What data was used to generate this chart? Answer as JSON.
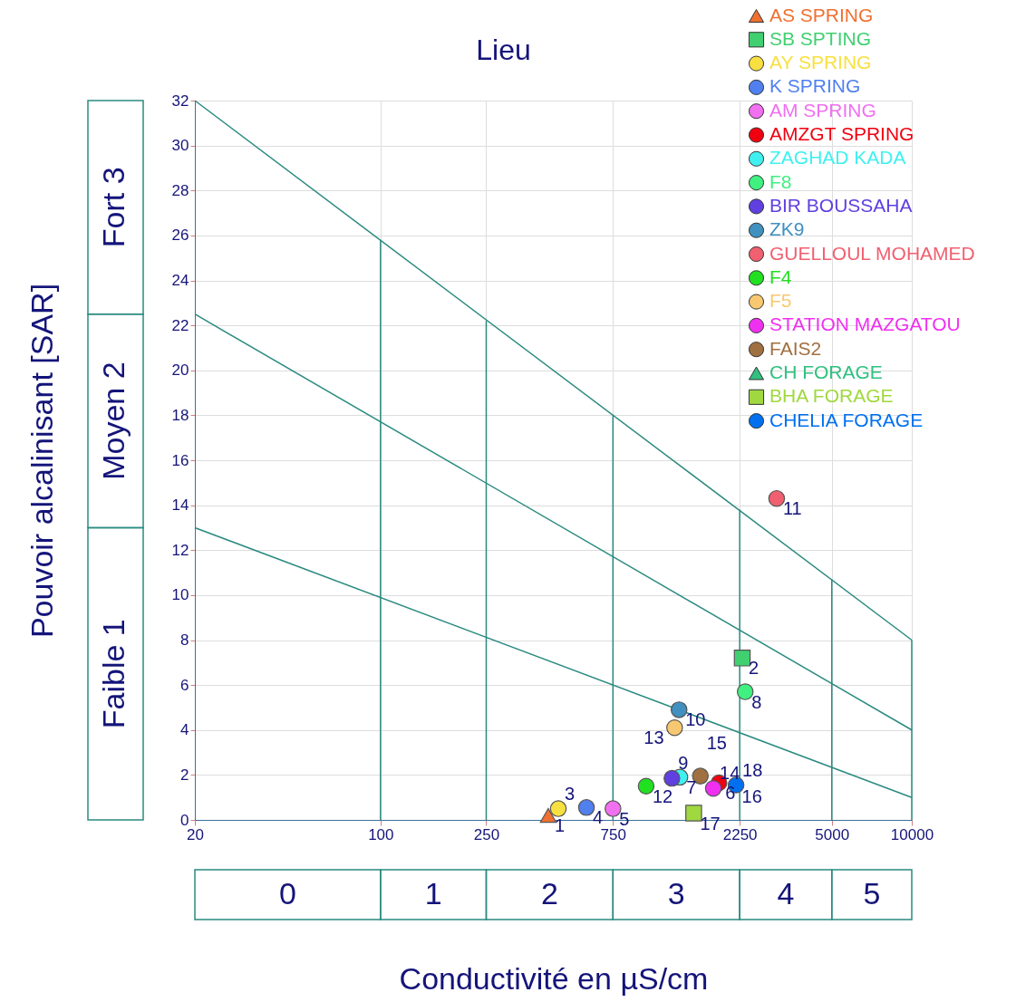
{
  "chart_data": {
    "type": "scatter",
    "title": "Lieu",
    "xlabel": "Conductivité en µS/cm",
    "ylabel": "Pouvoir alcalinisant [SAR]",
    "log": "x",
    "xlim": [
      20,
      10000
    ],
    "xticks": [
      20,
      100,
      250,
      750,
      2250,
      5000,
      10000
    ],
    "ylim": [
      0,
      32
    ],
    "yticks": [
      0,
      2,
      4,
      6,
      8,
      10,
      12,
      14,
      16,
      18,
      20,
      22,
      24,
      26,
      28,
      30,
      32
    ],
    "grid": true,
    "legend": "top right",
    "series": [
      {
        "type": "line",
        "color": "#2a8a80",
        "x": [
          20,
          10000
        ],
        "values": [
          32,
          8
        ]
      },
      {
        "type": "line",
        "color": "#2a8a80",
        "x": [
          20,
          10000
        ],
        "values": [
          22.5,
          4
        ]
      },
      {
        "type": "line",
        "color": "#2a8a80",
        "x": [
          20,
          10000
        ],
        "values": [
          13,
          1
        ]
      },
      {
        "type": "line",
        "color": "#2a8a80",
        "x": [
          100,
          100
        ],
        "values": [
          0,
          25.8
        ]
      },
      {
        "type": "line",
        "color": "#2a8a80",
        "x": [
          250,
          250
        ],
        "values": [
          0,
          22.2
        ]
      },
      {
        "type": "line",
        "color": "#2a8a80",
        "x": [
          750,
          750
        ],
        "values": [
          0,
          18
        ]
      },
      {
        "type": "line",
        "color": "#2a8a80",
        "x": [
          2250,
          2250
        ],
        "values": [
          0,
          13.8
        ]
      },
      {
        "type": "line",
        "color": "#2a8a80",
        "x": [
          5000,
          5000
        ],
        "values": [
          0,
          10.7
        ]
      },
      {
        "type": "line",
        "color": "#2a8a80",
        "x": [
          10000,
          10000
        ],
        "values": [
          0,
          8
        ]
      },
      {
        "name": "AS SPRING",
        "color": "#f07030",
        "marker": "triangle",
        "x": [
          428
        ],
        "values": [
          0.2
        ]
      },
      {
        "name": "SB SPTING",
        "color": "#40d070",
        "marker": "square",
        "x": [
          2300
        ],
        "values": [
          7.2
        ]
      },
      {
        "name": "AY SPRING",
        "color": "#f8e040",
        "marker": "circle",
        "x": [
          467
        ],
        "values": [
          0.5
        ]
      },
      {
        "name": "K SPRING",
        "color": "#5080f0",
        "marker": "circle",
        "x": [
          596
        ],
        "values": [
          0.55
        ]
      },
      {
        "name": "AM SPRING",
        "color": "#f070f0",
        "marker": "circle",
        "x": [
          750
        ],
        "values": [
          0.5
        ]
      },
      {
        "name": "AMZGT SPRING",
        "color": "#f00010",
        "marker": "circle",
        "x": [
          1880
        ],
        "values": [
          1.65
        ]
      },
      {
        "name": "ZAGHAD KADA",
        "color": "#40f0f0",
        "marker": "circle",
        "x": [
          1340
        ],
        "values": [
          1.9
        ]
      },
      {
        "name": "F8",
        "color": "#40f080",
        "marker": "circle",
        "x": [
          2360
        ],
        "values": [
          5.7
        ]
      },
      {
        "name": "BIR BOUSSAHA",
        "color": "#6040e0",
        "marker": "circle",
        "x": [
          1250
        ],
        "values": [
          1.85
        ]
      },
      {
        "name": "ZK9",
        "color": "#4090c0",
        "marker": "circle",
        "x": [
          1330
        ],
        "values": [
          4.9
        ]
      },
      {
        "name": "GUELLOUL MOHAMED",
        "color": "#f06070",
        "marker": "circle",
        "x": [
          3100
        ],
        "values": [
          14.3
        ]
      },
      {
        "name": "F4",
        "color": "#20e020",
        "marker": "circle",
        "x": [
          1000
        ],
        "values": [
          1.5
        ]
      },
      {
        "name": "F5",
        "color": "#f8c870",
        "marker": "circle",
        "x": [
          1280
        ],
        "values": [
          4.1
        ]
      },
      {
        "name": "STATION MAZGATOU",
        "color": "#f030f0",
        "marker": "circle",
        "x": [
          1790
        ],
        "values": [
          1.4
        ]
      },
      {
        "name": "FAIS2",
        "color": "#a07040",
        "marker": "circle",
        "x": [
          1600
        ],
        "values": [
          1.95
        ]
      },
      {
        "name": "CH FORAGE",
        "color": "#30c080",
        "marker": "triangle",
        "x": [
          null
        ],
        "values": [
          null
        ]
      },
      {
        "name": "BHA FORAGE",
        "color": "#a0d840",
        "marker": "square",
        "x": [
          1510
        ],
        "values": [
          0.3
        ]
      },
      {
        "name": "CHELIA FORAGE",
        "color": "#0070f0",
        "marker": "circle",
        "x": [
          2180
        ],
        "values": [
          1.55
        ]
      }
    ],
    "annotations": [
      "Faible  1",
      "Moyen  2",
      "Fort  3",
      "0",
      "1",
      "2",
      "3",
      "4",
      "5",
      {
        "text": "1",
        "x": 428,
        "y": 0.2
      },
      {
        "text": "2",
        "x": 2300,
        "y": 7.2
      },
      {
        "text": "3",
        "x": 467,
        "y": 0.5
      },
      {
        "text": "4",
        "x": 596,
        "y": 0.55
      },
      {
        "text": "5",
        "x": 750,
        "y": 0.5
      },
      {
        "text": "6",
        "x": 1880,
        "y": 1.65
      },
      {
        "text": "7",
        "x": 1340,
        "y": 1.9
      },
      {
        "text": "8",
        "x": 2360,
        "y": 5.7
      },
      {
        "text": "9",
        "x": 1250,
        "y": 1.85
      },
      {
        "text": "10",
        "x": 1330,
        "y": 4.9
      },
      {
        "text": "11",
        "x": 3100,
        "y": 14.3
      },
      {
        "text": "12",
        "x": 1000,
        "y": 1.5
      },
      {
        "text": "13",
        "x": 1280,
        "y": 4.1
      },
      {
        "text": "14",
        "x": 1790,
        "y": 1.4
      },
      {
        "text": "15",
        "x": 1600,
        "y": 1.95
      },
      {
        "text": "16",
        "x": 2170,
        "y": 1.5
      },
      {
        "text": "17",
        "x": 1510,
        "y": 0.3
      },
      {
        "text": "18",
        "x": 2180,
        "y": 1.55
      }
    ]
  }
}
